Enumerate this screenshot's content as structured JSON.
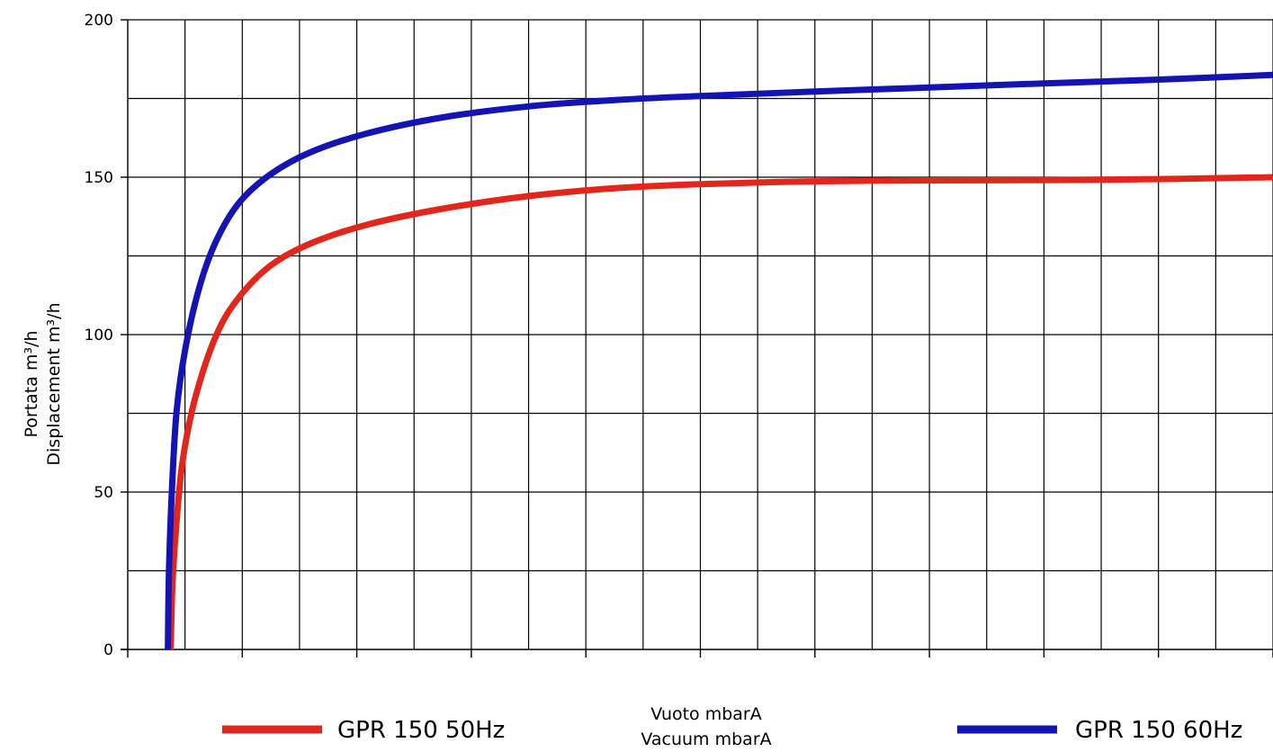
{
  "chart_data": {
    "type": "line",
    "ylabel_lines": [
      "Portata m³/h",
      "Displacement m³/h"
    ],
    "xlabel_lines": [
      "Vuoto mbarA",
      "Vacuum mbarA"
    ],
    "ylim": [
      0,
      200
    ],
    "y_ticks": [
      {
        "value": 0,
        "label": "0"
      },
      {
        "value": 50,
        "label": "50"
      },
      {
        "value": 100,
        "label": "100"
      },
      {
        "value": 150,
        "label": "150"
      },
      {
        "value": 200,
        "label": "200"
      }
    ],
    "y_minor_gridlines": [
      25,
      75,
      125,
      175
    ],
    "x_gridline_count": 20,
    "grid": true,
    "legend_placement": "bottom",
    "series": [
      {
        "name": "GPR 150 50Hz",
        "color": "#e3261b",
        "points": [
          [
            0.75,
            0
          ],
          [
            0.78,
            20
          ],
          [
            0.85,
            40
          ],
          [
            0.96,
            60
          ],
          [
            1.18,
            80
          ],
          [
            1.55,
            100
          ],
          [
            1.95,
            112
          ],
          [
            2.5,
            122
          ],
          [
            3.2,
            129
          ],
          [
            4.2,
            135
          ],
          [
            5.5,
            140
          ],
          [
            7.0,
            144
          ],
          [
            8.5,
            146.5
          ],
          [
            10.0,
            147.8
          ],
          [
            12.0,
            148.7
          ],
          [
            14.0,
            149.0
          ],
          [
            16.0,
            149.1
          ],
          [
            18.0,
            149.4
          ],
          [
            20.0,
            150.0
          ]
        ]
      },
      {
        "name": "GPR 150 60Hz",
        "color": "#1414b4",
        "points": [
          [
            0.7,
            0
          ],
          [
            0.72,
            25
          ],
          [
            0.77,
            50
          ],
          [
            0.85,
            75
          ],
          [
            1.0,
            95
          ],
          [
            1.25,
            115
          ],
          [
            1.55,
            130
          ],
          [
            1.95,
            142
          ],
          [
            2.5,
            151
          ],
          [
            3.2,
            158
          ],
          [
            4.2,
            164
          ],
          [
            5.5,
            169
          ],
          [
            7.0,
            172.5
          ],
          [
            8.5,
            174.5
          ],
          [
            10.0,
            175.8
          ],
          [
            12.0,
            177.2
          ],
          [
            14.0,
            178.5
          ],
          [
            16.0,
            179.8
          ],
          [
            18.0,
            181
          ],
          [
            20.0,
            182.5
          ]
        ]
      }
    ]
  }
}
